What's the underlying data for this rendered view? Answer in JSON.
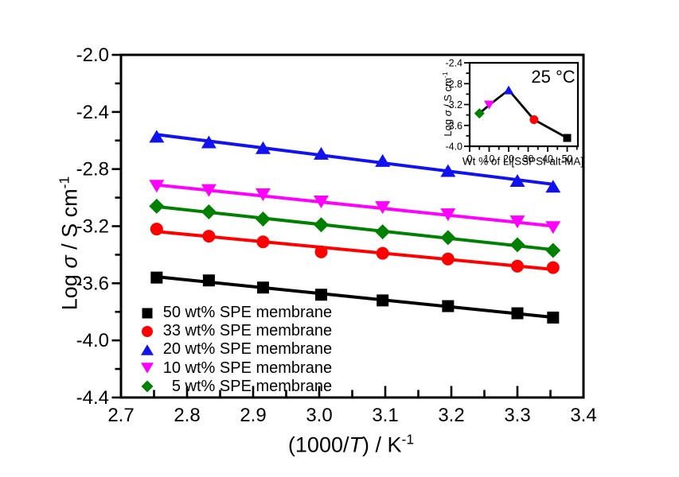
{
  "figure": {
    "background": "#ffffff",
    "frame_color": "#000000"
  },
  "labels": {
    "main_ylabel": {
      "p1": "Log ",
      "italic": "σ",
      "p2": " / S cm",
      "sup": "-1"
    },
    "main_xlabel": {
      "p1": "(1000/",
      "italic": "T",
      "p2": ") / K",
      "sup": "-1"
    },
    "inset_ylabel": {
      "p1": "Log ",
      "italic": "σ",
      "p2": " / S cm",
      "sup": "-1"
    },
    "inset_xlabel": "Wt % of Li[SSPSI-alt-MA]",
    "inset_title": "25 °C"
  },
  "chart_data": [
    {
      "id": "main",
      "type": "line",
      "title": "",
      "xlabel": "(1000/T) / K⁻¹",
      "ylabel": "Log σ / S cm⁻¹",
      "xlim": [
        2.7,
        3.4
      ],
      "ylim": [
        -4.4,
        -2.0
      ],
      "xticks": [
        2.7,
        2.8,
        2.9,
        3.0,
        3.1,
        3.2,
        3.3,
        3.4
      ],
      "yticks": [
        -2.0,
        -2.4,
        -2.8,
        -3.2,
        -3.6,
        -4.0,
        -4.4
      ],
      "xtick_labels": [
        "2.7",
        "2.8",
        "2.9",
        "3.0",
        "3.1",
        "3.2",
        "3.3",
        "3.4"
      ],
      "ytick_labels": [
        "-2.0",
        "-2.4",
        "-2.8",
        "-3.2",
        "-3.6",
        "-4.0",
        "-4.4"
      ],
      "grid": false,
      "legend_position": "lower-left-inside",
      "fit_lines": true,
      "x": [
        2.754,
        2.833,
        2.915,
        3.003,
        3.096,
        3.195,
        3.3,
        3.354
      ],
      "series": [
        {
          "name": "50 wt% SPE membrane",
          "marker": "square",
          "color": "#000000",
          "values": [
            -3.56,
            -3.58,
            -3.63,
            -3.68,
            -3.72,
            -3.76,
            -3.81,
            -3.84
          ]
        },
        {
          "name": "33 wt% SPE membrane",
          "marker": "circle",
          "color": "#ff0000",
          "values": [
            -3.22,
            -3.27,
            -3.31,
            -3.38,
            -3.39,
            -3.43,
            -3.48,
            -3.49
          ]
        },
        {
          "name": "20 wt% SPE membrane",
          "marker": "triangle-up",
          "color": "#1212ee",
          "values": [
            -2.57,
            -2.61,
            -2.65,
            -2.69,
            -2.74,
            -2.81,
            -2.88,
            -2.92
          ]
        },
        {
          "name": "10 wt% SPE membrane",
          "marker": "triangle-down",
          "color": "#ff00ff",
          "values": [
            -2.92,
            -2.95,
            -2.98,
            -3.03,
            -3.07,
            -3.12,
            -3.17,
            -3.21
          ]
        },
        {
          "name": "5 wt% SPE membrane",
          "marker": "diamond",
          "color": "#008000",
          "values": [
            -3.06,
            -3.1,
            -3.15,
            -3.19,
            -3.24,
            -3.28,
            -3.33,
            -3.37
          ]
        }
      ]
    },
    {
      "id": "inset",
      "type": "line",
      "title": "25 °C",
      "xlabel": "Wt % of Li[SSPSI-alt-MA]",
      "ylabel": "Log σ / S cm⁻¹",
      "xlim": [
        0,
        55.5
      ],
      "ylim": [
        -4.0,
        -2.4
      ],
      "xticks": [
        0,
        10,
        20,
        30,
        40,
        50
      ],
      "yticks": [
        -2.4,
        -2.8,
        -3.2,
        -3.6,
        -4.0
      ],
      "xtick_labels": [
        "0",
        "10",
        "20",
        "30",
        "40",
        "50"
      ],
      "ytick_labels": [
        "-2.4",
        "-2.8",
        "-3.2",
        "-3.6",
        "-4.0"
      ],
      "grid": false,
      "line_color": "#000000",
      "x": [
        5,
        10,
        20,
        33,
        50
      ],
      "values": [
        -3.37,
        -3.21,
        -2.92,
        -3.49,
        -3.84
      ],
      "point_markers": [
        {
          "marker": "diamond",
          "color": "#008000"
        },
        {
          "marker": "triangle-down",
          "color": "#ff00ff"
        },
        {
          "marker": "triangle-up",
          "color": "#1212ee"
        },
        {
          "marker": "circle",
          "color": "#ff0000"
        },
        {
          "marker": "square",
          "color": "#000000"
        }
      ]
    }
  ]
}
